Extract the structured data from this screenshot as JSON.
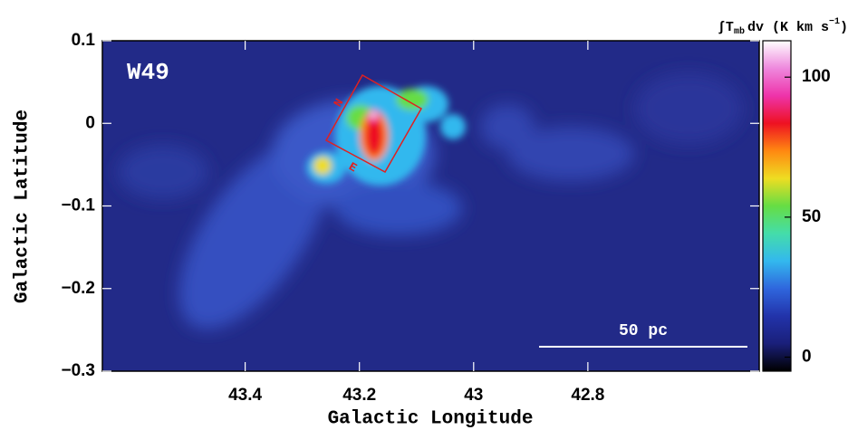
{
  "chart_data": {
    "type": "image",
    "label": "W49",
    "x_label": "Galactic Longitude",
    "y_label": "Galactic Latitude",
    "xlim": [
      43.65,
      42.5
    ],
    "ylim": [
      -0.3,
      0.1
    ],
    "xticks": [
      43.4,
      43.2,
      43,
      42.8
    ],
    "yticks": [
      0.1,
      0,
      {
        "value": -0.1,
        "label": "−0.1"
      },
      {
        "value": -0.2,
        "label": "−0.2"
      },
      {
        "value": -0.3,
        "label": "−0.3"
      }
    ],
    "colorbar_label": [
      "∫T",
      "mb",
      "dv (K km s",
      "−1",
      ")"
    ],
    "clim": [
      -5,
      113
    ],
    "cticks": [
      0,
      50,
      100
    ],
    "colormap": [
      "#000000",
      "#1a1f7a",
      "#2233aa",
      "#2f66dd",
      "#33b8ee",
      "#44ddaa",
      "#66dd44",
      "#eedd22",
      "#ff8811",
      "#ee1122",
      "#ee33aa",
      "#ee88dd",
      "#ffffff"
    ],
    "scale_bar": "50 pc",
    "box_labels": [
      "N",
      "E"
    ]
  }
}
